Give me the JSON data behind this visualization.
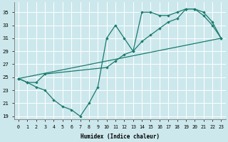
{
  "xlabel": "Humidex (Indice chaleur)",
  "xlim": [
    -0.5,
    23.5
  ],
  "ylim": [
    18.5,
    36.5
  ],
  "xticks": [
    0,
    1,
    2,
    3,
    4,
    5,
    6,
    7,
    8,
    9,
    10,
    11,
    12,
    13,
    14,
    15,
    16,
    17,
    18,
    19,
    20,
    21,
    22,
    23
  ],
  "yticks": [
    19,
    21,
    23,
    25,
    27,
    29,
    31,
    33,
    35
  ],
  "bg_color": "#cce8ec",
  "grid_color": "#b0d8de",
  "line_color": "#1a7a6e",
  "line1_x": [
    0,
    1,
    2,
    3,
    10,
    11,
    12,
    13,
    14,
    15,
    16,
    17,
    18,
    19,
    20,
    21,
    22,
    23
  ],
  "line1_y": [
    24.8,
    24.2,
    24.2,
    25.5,
    26.5,
    27.5,
    28.5,
    29.0,
    30.5,
    31.5,
    32.5,
    33.5,
    34.0,
    35.5,
    35.5,
    35.0,
    33.5,
    31.0
  ],
  "line2_x": [
    0,
    1,
    2,
    3,
    4,
    5,
    6,
    7,
    8,
    9,
    10,
    11,
    12,
    13,
    14,
    15,
    16,
    17,
    18,
    19,
    20,
    21,
    22,
    23
  ],
  "line2_y": [
    24.8,
    24.2,
    23.5,
    23.0,
    21.5,
    20.5,
    20.0,
    19.0,
    21.0,
    23.5,
    31.0,
    33.0,
    31.0,
    29.0,
    35.0,
    35.0,
    34.5,
    34.5,
    35.0,
    35.5,
    35.5,
    34.5,
    33.0,
    31.0
  ],
  "line3_x": [
    0,
    23
  ],
  "line3_y": [
    24.8,
    31.0
  ]
}
